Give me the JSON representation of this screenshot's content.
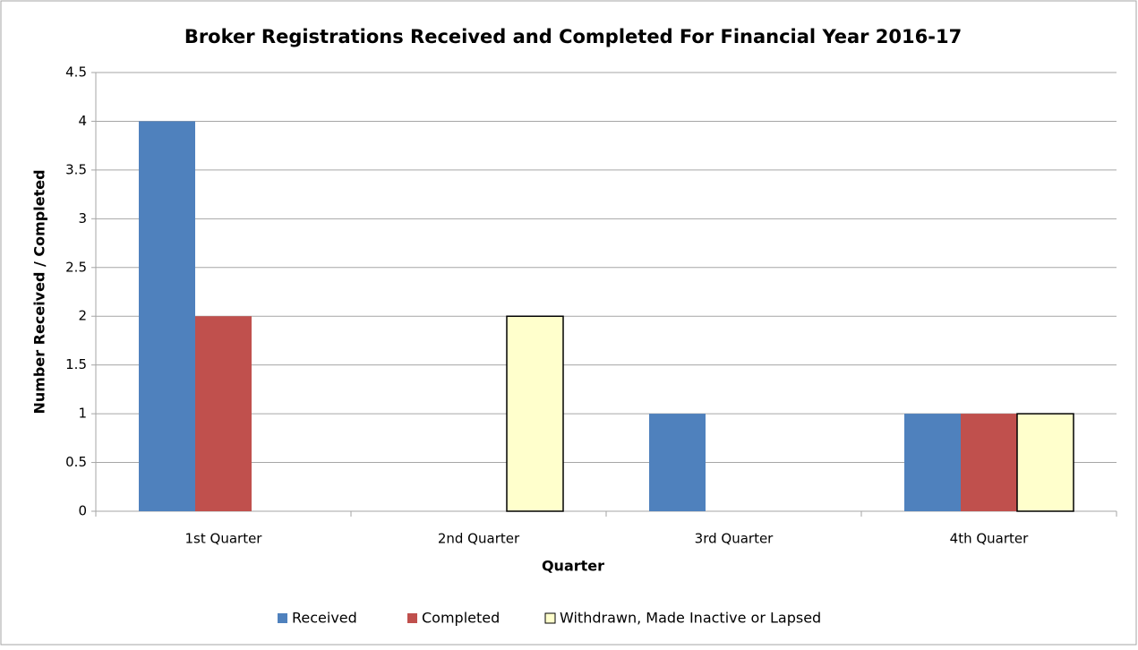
{
  "chart_data": {
    "type": "bar",
    "title": "Broker Registrations Received and Completed For Financial Year 2016-17",
    "x_label": "Quarter",
    "y_label": "Number Received / Completed",
    "categories": [
      "1st Quarter",
      "2nd Quarter",
      "3rd Quarter",
      "4th Quarter"
    ],
    "series": [
      {
        "name": "Received",
        "color": "#4f81bd",
        "values": [
          4,
          0,
          1,
          1
        ]
      },
      {
        "name": "Completed",
        "color": "#c0504d",
        "values": [
          2,
          0,
          0,
          1
        ]
      },
      {
        "name": "Withdrawn, Made Inactive or Lapsed",
        "color": "#ffffcc",
        "values": [
          0,
          2,
          0,
          1
        ]
      }
    ],
    "ylim": [
      0,
      4.5
    ],
    "yticks": [
      0,
      0.5,
      1,
      1.5,
      2,
      2.5,
      3,
      3.5,
      4,
      4.5
    ],
    "grid": true,
    "legend": "bottom"
  }
}
